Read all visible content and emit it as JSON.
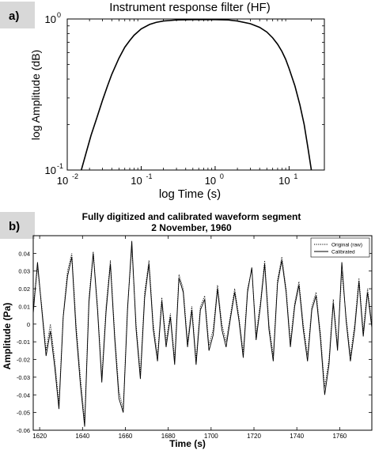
{
  "panels": [
    {
      "label": "a)"
    },
    {
      "label": "b)"
    }
  ],
  "colors": {
    "label_bg": "#d8d8d8",
    "line": "#000000",
    "frame": "#000000"
  },
  "chart_data": [
    {
      "type": "line",
      "title": "Instrument response filter (HF)",
      "xlabel": "log Time (s)",
      "ylabel": "log Amplitude (dB)",
      "xscale": "log",
      "yscale": "log",
      "xlim": [
        0.01,
        30
      ],
      "ylim": [
        0.1,
        1
      ],
      "x_ticks": [
        {
          "base": "10",
          "exp": "-2",
          "value": 0.01
        },
        {
          "base": "10",
          "exp": "-1",
          "value": 0.1
        },
        {
          "base": "10",
          "exp": "0",
          "value": 1
        },
        {
          "base": "10",
          "exp": "1",
          "value": 10
        }
      ],
      "y_ticks": [
        {
          "base": "10",
          "exp": "-1",
          "value": 0.1
        },
        {
          "base": "10",
          "exp": "0",
          "value": 1
        }
      ],
      "grid": false,
      "series": [
        {
          "x": [
            0.0155,
            0.018,
            0.021,
            0.025,
            0.03,
            0.035,
            0.04,
            0.05,
            0.06,
            0.07,
            0.08,
            0.1,
            0.13,
            0.16,
            0.2,
            0.3,
            0.5,
            1.0,
            1.5,
            2.0,
            3.0,
            4.0,
            5.0,
            6.0,
            7.0,
            8.0,
            9.0,
            10.0,
            12.0,
            14.0,
            16.0,
            18.0,
            20.0
          ],
          "y": [
            0.1,
            0.13,
            0.17,
            0.22,
            0.29,
            0.36,
            0.43,
            0.55,
            0.65,
            0.72,
            0.78,
            0.86,
            0.92,
            0.95,
            0.97,
            0.985,
            0.99,
            0.99,
            0.985,
            0.97,
            0.93,
            0.88,
            0.82,
            0.75,
            0.68,
            0.61,
            0.54,
            0.47,
            0.36,
            0.27,
            0.2,
            0.14,
            0.1
          ]
        }
      ]
    },
    {
      "type": "line",
      "title": "Fully digitized and calibrated waveform segment",
      "subtitle": "2 November, 1960",
      "xlabel": "Time (s)",
      "ylabel": "Amplitude (Pa)",
      "xlim": [
        1617,
        1775
      ],
      "ylim": [
        -0.06,
        0.05
      ],
      "x_ticks": [
        1620,
        1640,
        1660,
        1680,
        1700,
        1720,
        1740,
        1760
      ],
      "y_ticks": [
        -0.06,
        -0.05,
        -0.04,
        -0.03,
        -0.02,
        -0.01,
        0,
        0.01,
        0.02,
        0.03,
        0.04
      ],
      "y_tick_labels": [
        "-0.06",
        "-0.05",
        "-0.04",
        "-0.03",
        "-0.02",
        "-0.01",
        "0",
        "0.01",
        "0.02",
        "0.03",
        "0.04"
      ],
      "grid": false,
      "legend": {
        "position": "top-right"
      },
      "series": [
        {
          "name": "Original (raw)",
          "style": "dotted",
          "x": [
            1617,
            1619,
            1621,
            1623,
            1625,
            1627,
            1629,
            1631,
            1633,
            1635,
            1637,
            1639,
            1641,
            1643,
            1645,
            1647,
            1649,
            1651,
            1653,
            1655,
            1657,
            1659,
            1661,
            1663,
            1665,
            1667,
            1669,
            1671,
            1673,
            1675,
            1677,
            1679,
            1681,
            1683,
            1685,
            1687,
            1689,
            1691,
            1693,
            1695,
            1697,
            1699,
            1701,
            1703,
            1705,
            1707,
            1709,
            1711,
            1713,
            1715,
            1717,
            1719,
            1721,
            1723,
            1725,
            1727,
            1729,
            1731,
            1733,
            1735,
            1737,
            1739,
            1741,
            1743,
            1745,
            1747,
            1749,
            1751,
            1753,
            1755,
            1757,
            1759,
            1761,
            1763,
            1765,
            1767,
            1769,
            1771,
            1773,
            1775
          ],
          "y": [
            0.01,
            0.032,
            0.01,
            -0.015,
            0.0,
            -0.02,
            -0.045,
            0.005,
            0.03,
            0.04,
            0.0,
            -0.03,
            -0.055,
            0.015,
            0.041,
            0.01,
            -0.03,
            0.01,
            0.036,
            -0.005,
            -0.038,
            -0.048,
            0.01,
            0.043,
            0.0,
            -0.028,
            0.018,
            0.036,
            0.0,
            -0.018,
            0.015,
            -0.01,
            0.006,
            -0.02,
            0.028,
            0.02,
            -0.01,
            0.01,
            -0.02,
            0.01,
            0.016,
            -0.012,
            -0.003,
            0.022,
            0.0,
            -0.01,
            0.005,
            0.02,
            0.004,
            -0.016,
            0.02,
            0.031,
            -0.006,
            0.012,
            0.036,
            0.0,
            -0.018,
            0.025,
            0.038,
            0.02,
            -0.01,
            0.012,
            0.024,
            0.0,
            -0.018,
            0.01,
            0.018,
            -0.005,
            -0.036,
            -0.02,
            0.014,
            -0.012,
            0.03,
            0.004,
            -0.018,
            0.0,
            0.026,
            -0.004,
            0.02,
            0.0
          ]
        },
        {
          "name": "Calibrated",
          "style": "solid",
          "x": [
            1617,
            1619,
            1621,
            1623,
            1625,
            1627,
            1629,
            1631,
            1633,
            1635,
            1637,
            1639,
            1641,
            1643,
            1645,
            1647,
            1649,
            1651,
            1653,
            1655,
            1657,
            1659,
            1661,
            1663,
            1665,
            1667,
            1669,
            1671,
            1673,
            1675,
            1677,
            1679,
            1681,
            1683,
            1685,
            1687,
            1689,
            1691,
            1693,
            1695,
            1697,
            1699,
            1701,
            1703,
            1705,
            1707,
            1709,
            1711,
            1713,
            1715,
            1717,
            1719,
            1721,
            1723,
            1725,
            1727,
            1729,
            1731,
            1733,
            1735,
            1737,
            1739,
            1741,
            1743,
            1745,
            1747,
            1749,
            1751,
            1753,
            1755,
            1757,
            1759,
            1761,
            1763,
            1765,
            1767,
            1769,
            1771,
            1773,
            1775
          ],
          "y": [
            0.006,
            0.035,
            0.008,
            -0.018,
            -0.004,
            -0.024,
            -0.048,
            0.004,
            0.027,
            0.038,
            -0.004,
            -0.034,
            -0.058,
            0.012,
            0.04,
            0.008,
            -0.033,
            0.007,
            0.034,
            -0.008,
            -0.042,
            -0.05,
            0.008,
            0.047,
            -0.003,
            -0.031,
            0.015,
            0.034,
            -0.003,
            -0.021,
            0.013,
            -0.013,
            0.004,
            -0.023,
            0.026,
            0.018,
            -0.013,
            0.008,
            -0.023,
            0.008,
            0.014,
            -0.015,
            -0.006,
            0.02,
            -0.003,
            -0.013,
            0.003,
            0.018,
            0.002,
            -0.019,
            0.018,
            0.032,
            -0.009,
            0.01,
            0.034,
            -0.003,
            -0.021,
            0.023,
            0.036,
            0.018,
            -0.013,
            0.01,
            0.022,
            -0.003,
            -0.021,
            0.008,
            0.016,
            -0.008,
            -0.04,
            -0.023,
            0.012,
            -0.015,
            0.035,
            0.002,
            -0.021,
            -0.003,
            0.024,
            -0.007,
            0.018,
            -0.002
          ]
        }
      ]
    }
  ]
}
